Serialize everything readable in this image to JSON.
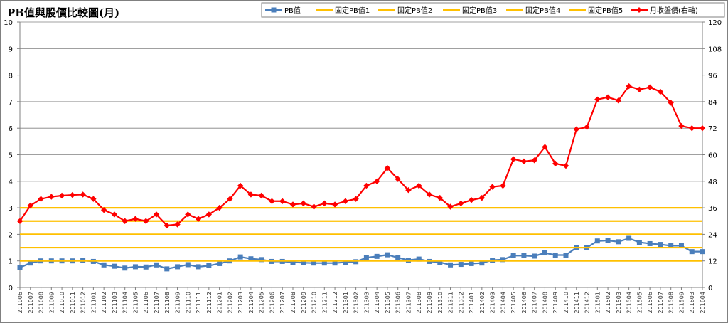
{
  "chart_data": {
    "type": "line",
    "title": "PB值與股價比較圖(月)",
    "x": [
      "201006",
      "201007",
      "201008",
      "201009",
      "201010",
      "201011",
      "201012",
      "201101",
      "201102",
      "201103",
      "201104",
      "201105",
      "201106",
      "201107",
      "201108",
      "201109",
      "201110",
      "201111",
      "201112",
      "201201",
      "201202",
      "201203",
      "201204",
      "201205",
      "201206",
      "201207",
      "201208",
      "201209",
      "201210",
      "201211",
      "201212",
      "201301",
      "201302",
      "201303",
      "201304",
      "201305",
      "201306",
      "201307",
      "201308",
      "201309",
      "201310",
      "201311",
      "201312",
      "201401",
      "201402",
      "201403",
      "201404",
      "201405",
      "201406",
      "201407",
      "201408",
      "201409",
      "201410",
      "201411",
      "201412",
      "201501",
      "201502",
      "201503",
      "201504",
      "201505",
      "201506",
      "201507",
      "201508",
      "201509",
      "201603",
      "201604"
    ],
    "ylim_left": [
      0,
      10
    ],
    "yticks_left": [
      0,
      1,
      2,
      3,
      4,
      5,
      6,
      7,
      8,
      9,
      10
    ],
    "ylim_right": [
      0,
      120
    ],
    "yticks_right": [
      0,
      12,
      24,
      36,
      48,
      60,
      72,
      84,
      96,
      108,
      120
    ],
    "grid": true,
    "legend_position": "top-right",
    "series": [
      {
        "name": "PB值",
        "axis": "left",
        "color": "#4a7ebb",
        "marker": "square",
        "values": [
          0.75,
          0.92,
          1.0,
          1.0,
          1.0,
          1.0,
          1.02,
          0.98,
          0.85,
          0.8,
          0.73,
          0.78,
          0.77,
          0.85,
          0.7,
          0.78,
          0.86,
          0.78,
          0.82,
          0.9,
          1.0,
          1.15,
          1.08,
          1.05,
          0.98,
          0.98,
          0.95,
          0.93,
          0.92,
          0.92,
          0.92,
          0.95,
          0.97,
          1.12,
          1.17,
          1.23,
          1.12,
          1.03,
          1.07,
          0.98,
          0.95,
          0.85,
          0.87,
          0.9,
          0.92,
          1.03,
          1.05,
          1.2,
          1.2,
          1.18,
          1.3,
          1.22,
          1.22,
          1.5,
          1.5,
          1.75,
          1.77,
          1.72,
          1.85,
          1.7,
          1.65,
          1.62,
          1.57,
          1.57,
          1.35,
          1.35
        ]
      },
      {
        "name": "固定PB值1",
        "axis": "left",
        "color": "#ffc000",
        "values_constant": 1.0
      },
      {
        "name": "固定PB值2",
        "axis": "left",
        "color": "#ffc000",
        "values_constant": 1.5
      },
      {
        "name": "固定PB值3",
        "axis": "left",
        "color": "#ffc000",
        "values_constant": 2.0
      },
      {
        "name": "固定PB值4",
        "axis": "left",
        "color": "#ffc000",
        "values_constant": 2.5
      },
      {
        "name": "固定PB值5",
        "axis": "left",
        "color": "#ffc000",
        "values_constant": 3.0
      },
      {
        "name": "月收盤價(右軸)",
        "axis": "right",
        "color": "#ff0000",
        "marker": "diamond",
        "values": [
          30,
          37,
          40,
          41,
          41.5,
          41.8,
          42,
          40,
          35,
          33,
          30,
          31,
          30,
          33,
          28,
          28.5,
          33,
          31,
          33,
          36,
          40,
          46,
          42,
          41.5,
          39,
          39,
          37.5,
          38,
          36.5,
          38,
          37.5,
          39,
          40,
          46,
          48,
          54,
          49,
          44,
          46,
          42,
          40.5,
          36.5,
          38,
          39.5,
          40.5,
          45.5,
          46,
          58,
          57,
          57.5,
          63.5,
          56,
          55,
          71.5,
          72.5,
          85,
          86,
          84.5,
          91,
          89.5,
          90.5,
          88.5,
          83.5,
          73,
          72,
          72
        ]
      }
    ]
  },
  "colors": {
    "pb": "#4a7ebb",
    "fixed": "#ffc000",
    "price": "#ff0000",
    "grid": "#808080",
    "axis": "#808080"
  }
}
